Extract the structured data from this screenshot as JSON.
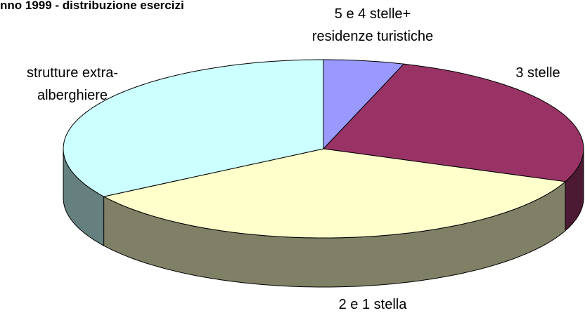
{
  "chart_data": {
    "type": "pie3d",
    "title": "nno 1999 - distribuzione esercizi",
    "categories": [
      "5 e 4 stelle+ residenze turistiche",
      "3 stelle",
      "2 e 1 stella",
      "strutture extra-alberghiere"
    ],
    "values": [
      5,
      26,
      35,
      34
    ],
    "colors": [
      "#9999ff",
      "#993366",
      "#ffffcc",
      "#ccffff"
    ],
    "side_colors": [
      "#5c5c99",
      "#4d1a33",
      "#808066",
      "#668080"
    ]
  }
}
